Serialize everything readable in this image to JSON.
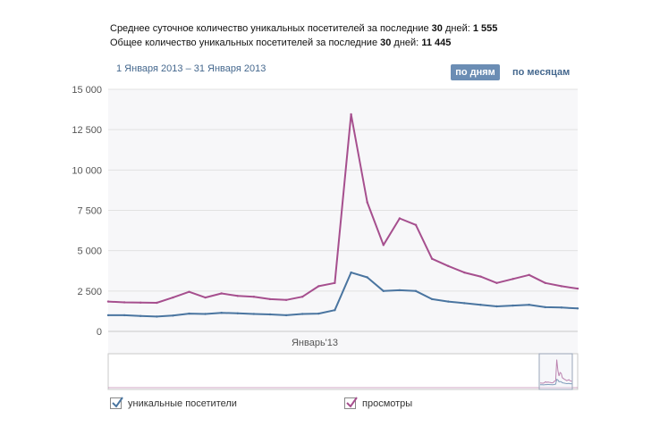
{
  "stats": {
    "line1_prefix": "Среднее суточное количество уникальных посетителей за последние ",
    "line1_days": "30",
    "line1_mid": " дней: ",
    "line1_value": "1 555",
    "line2_prefix": "Общее количество уникальных посетителей за последние ",
    "line2_days": "30",
    "line2_mid": " дней: ",
    "line2_value": "11 445"
  },
  "date_range": "1 Января 2013 – 31 Января 2013",
  "controls": {
    "by_day": "по дням",
    "by_month": "по месяцам"
  },
  "colors": {
    "visitors": "#4a75a0",
    "views": "#a64f8e",
    "grid": "#e2e2e2",
    "plot_bg": "#f7f7f9"
  },
  "legend": {
    "visitors": "уникальные посетители",
    "views": "просмотры",
    "visitors_checked": true,
    "views_checked": true
  },
  "chart_data": {
    "type": "line",
    "xlabel": "Январь'13",
    "x": [
      1,
      2,
      3,
      4,
      5,
      6,
      7,
      8,
      9,
      10,
      11,
      12,
      13,
      14,
      15,
      16,
      17,
      18,
      19,
      20,
      21,
      22,
      23,
      24,
      25,
      26,
      27,
      28,
      29,
      30
    ],
    "ylim": [
      0,
      15000
    ],
    "yticks": [
      0,
      2500,
      5000,
      7500,
      10000,
      12500,
      15000
    ],
    "ytick_labels": [
      "0",
      "2 500",
      "5 000",
      "7 500",
      "10 000",
      "12 500",
      "15 000"
    ],
    "grid": true,
    "series": [
      {
        "name": "уникальные посетители",
        "values": [
          1000,
          1000,
          950,
          920,
          980,
          1100,
          1080,
          1150,
          1120,
          1080,
          1050,
          1000,
          1080,
          1100,
          1320,
          3650,
          3350,
          2500,
          2550,
          2500,
          2000,
          1850,
          1750,
          1650,
          1550,
          1600,
          1650,
          1500,
          1480,
          1420
        ]
      },
      {
        "name": "просмотры",
        "values": [
          1850,
          1800,
          1780,
          1770,
          2100,
          2450,
          2100,
          2350,
          2200,
          2150,
          2000,
          1950,
          2150,
          2800,
          3000,
          13450,
          8000,
          5350,
          7000,
          6600,
          4500,
          4050,
          3650,
          3400,
          3000,
          3250,
          3500,
          3000,
          2800,
          2650
        ]
      }
    ]
  }
}
